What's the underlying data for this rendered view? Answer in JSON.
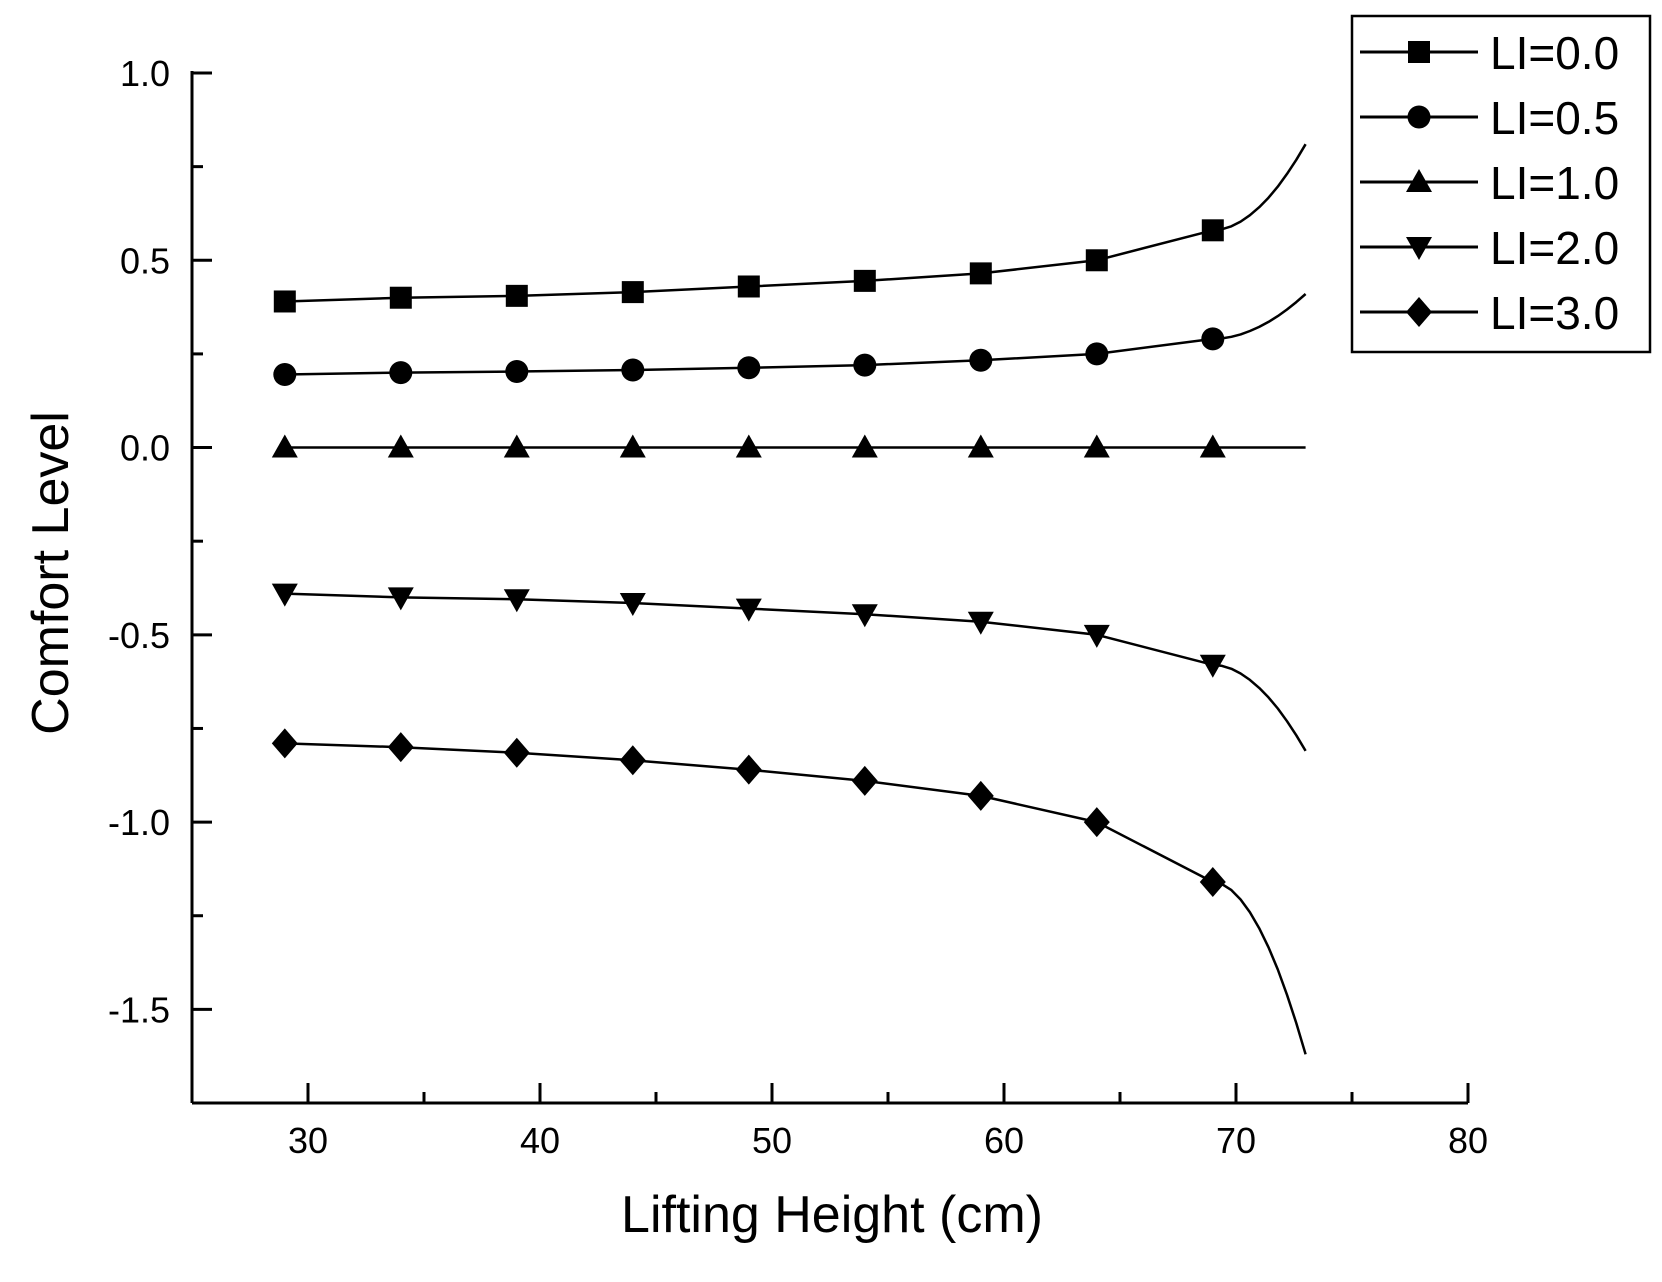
{
  "chart_data": {
    "type": "line",
    "title": "",
    "xlabel": "Lifting Height (cm)",
    "ylabel": "Comfort Level",
    "xlim": [
      25,
      80
    ],
    "ylim": [
      -1.75,
      1.0
    ],
    "xticks": [
      30,
      40,
      50,
      60,
      70,
      80
    ],
    "xtick_labels": [
      "30",
      "40",
      "50",
      "60",
      "70",
      "80"
    ],
    "yticks": [
      1.0,
      0.5,
      0.0,
      -0.5,
      -1.0,
      -1.5
    ],
    "ytick_labels": [
      "1.0",
      "0.5",
      "0.0",
      "-0.5",
      "-1.0",
      "-1.5"
    ],
    "grid": false,
    "legend_position": "top-right",
    "marker_x": [
      29,
      34,
      39,
      44,
      49,
      54,
      59,
      64,
      69
    ],
    "curve_end_x": 73,
    "series": [
      {
        "name": "LI=0.0",
        "marker": "square",
        "values": [
          0.39,
          0.4,
          0.405,
          0.415,
          0.43,
          0.445,
          0.465,
          0.5,
          0.58
        ],
        "end_value": 0.81
      },
      {
        "name": "LI=0.5",
        "marker": "circle",
        "values": [
          0.195,
          0.2,
          0.203,
          0.207,
          0.213,
          0.22,
          0.233,
          0.25,
          0.29
        ],
        "end_value": 0.41
      },
      {
        "name": "LI=1.0",
        "marker": "triangle-up",
        "values": [
          0.0,
          0.0,
          0.0,
          0.0,
          0.0,
          0.0,
          0.0,
          0.0,
          0.0
        ],
        "end_value": 0.0
      },
      {
        "name": "LI=2.0",
        "marker": "triangle-down",
        "values": [
          -0.39,
          -0.4,
          -0.405,
          -0.415,
          -0.43,
          -0.445,
          -0.465,
          -0.5,
          -0.58
        ],
        "end_value": -0.81
      },
      {
        "name": "LI=3.0",
        "marker": "diamond",
        "values": [
          -0.79,
          -0.8,
          -0.815,
          -0.835,
          -0.86,
          -0.89,
          -0.93,
          -1.0,
          -1.16
        ],
        "end_value": -1.62
      }
    ]
  }
}
